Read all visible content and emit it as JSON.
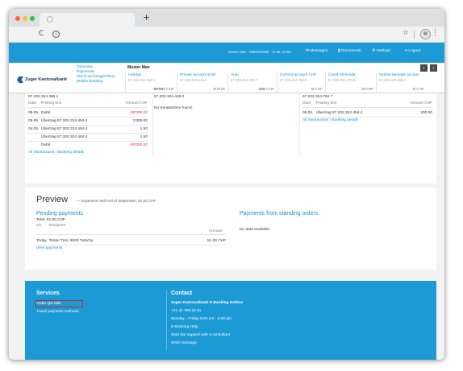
{
  "bank_header": {
    "user_info": "Muster Max · 9990031685 · 11.06. 14:58",
    "messages": "Messages",
    "documents": "Documents",
    "settings": "Settings",
    "logout": "Logout"
  },
  "nav": {
    "bank_name": "Zuger Kantonalbank",
    "menu": [
      "Overview",
      "Payments",
      "Stock exchange/Plans",
      "Mobile banking"
    ],
    "owner_name": "Muster Max",
    "accounts": [
      {
        "name": "Holiday",
        "iban": "57.202.324.366.1",
        "balance": "-98'997",
        "currency": "CHF"
      },
      {
        "name": "Private account EUR",
        "iban": "57.202.324.449.0",
        "balance": "0",
        "currency": "EUR"
      },
      {
        "name": "Auto",
        "iban": "57.202.324.752.7",
        "balance": "200",
        "currency": "CHF"
      },
      {
        "name": "Current account CHF",
        "iban": "57.202.324.784.5",
        "balance": "0",
        "currency": "CHF"
      },
      {
        "name": "Covid-19-Kredit",
        "iban": "57.202.324.470.6",
        "balance": "0",
        "currency": "CHF"
      },
      {
        "name": "Vested benefits accoun",
        "iban": "57.202.324.088.1",
        "balance": "0",
        "currency": "CHF"
      }
    ]
  },
  "transactions": {
    "col1": {
      "iban": "57.202.324.366.1",
      "header_date": "Date",
      "header_text": "Posting text",
      "header_amount": "Amount CHF",
      "rows": [
        {
          "date": "08.05.",
          "text": "Debit",
          "amount": "-50'000.00",
          "negative": true
        },
        {
          "date": "05.05.",
          "text": "Übertrag 57.202.324.454.4",
          "amount": "1'000.00",
          "negative": false
        },
        {
          "date": "04.05.",
          "text": "Übertrag 57.202.324.454.4",
          "amount": "1.50",
          "negative": false
        },
        {
          "date": "",
          "text": "Übertrag 57.202.324.454.4",
          "amount": "1.50",
          "negative": false
        },
        {
          "date": "",
          "text": "Debit",
          "amount": "-50'000.00",
          "negative": true
        }
      ],
      "link": "All transactions / Booking details"
    },
    "col2": {
      "iban": "57.202.324.449.0",
      "empty": "No transactions found."
    },
    "col3": {
      "iban": "57.202.324.752.7",
      "header_date": "Date",
      "header_text": "Posting text",
      "header_amount": "Amount CHF",
      "rows": [
        {
          "date": "05.05.",
          "text": "Übertrag 57.202.324.454.4",
          "amount": "200.00",
          "negative": false
        }
      ],
      "link": "All transactions / Booking details"
    }
  },
  "preview": {
    "title": "Preview",
    "subtitle": "— Expenses until end of September: 51.00 CHF",
    "pending": {
      "heading": "Pending payments",
      "total": "Total: 51.00 CHF",
      "header_on": "On",
      "header_recipient": "Recipient",
      "header_amount": "Amount",
      "row_date": "Today",
      "row_recipient": "Tester Test, 9000 Tutochy",
      "row_amount": "51.00 CHF",
      "link": "View payments"
    },
    "standing": {
      "heading": "Payments from standing orders",
      "empty": "No data available."
    }
  },
  "footer": {
    "services_heading": "Services",
    "services": [
      "Order QR bills",
      "Travel payment methods"
    ],
    "contact_heading": "Contact",
    "contact": [
      "Zuger Kantonalbank E-Banking Hotline",
      "+41 41 709 12 61",
      "Monday - Friday 8.00 am - 6.00 pm",
      "E-Banking Help",
      "Start live support with a consultant",
      "Write message"
    ]
  },
  "colors": {
    "brand_blue": "#1c9ad6",
    "link_blue": "#1a8fd1",
    "negative_red": "#d9392c"
  }
}
